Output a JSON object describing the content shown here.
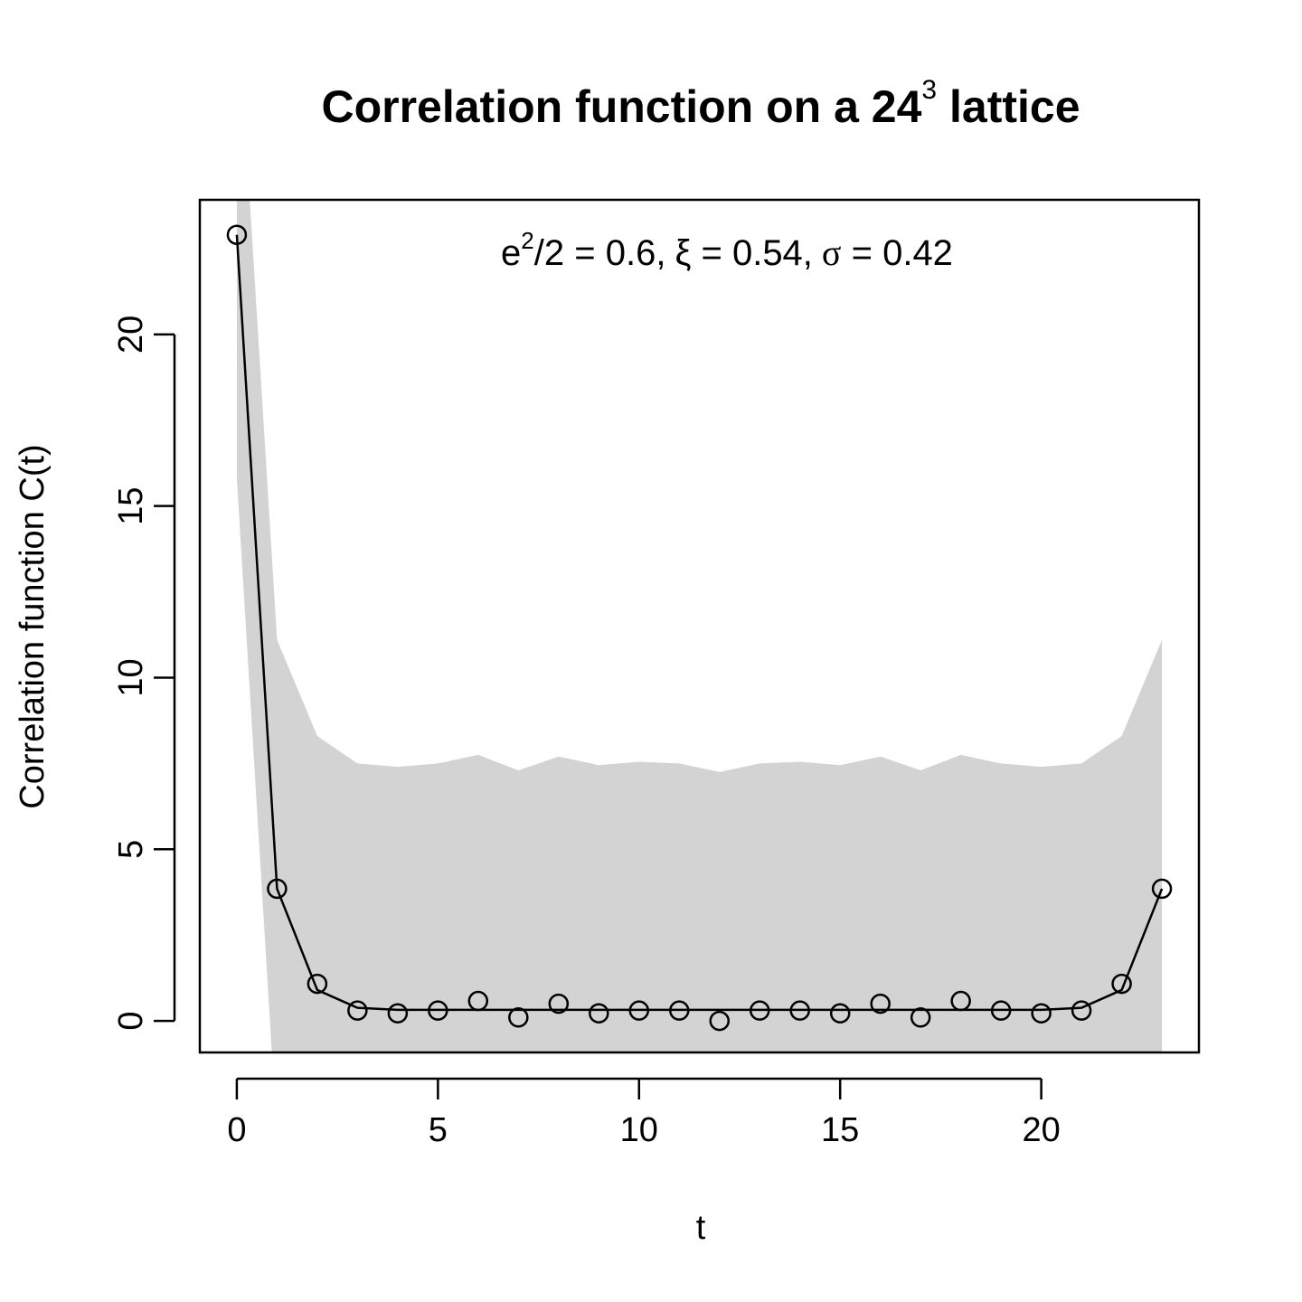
{
  "chart_data": {
    "type": "line",
    "title": {
      "text": "Correlation function on a 24",
      "superscript": "3",
      "suffix": " lattice"
    },
    "xlabel": "t",
    "ylabel": "Correlation function C(t)",
    "xlim": [
      -0.92,
      23.92
    ],
    "ylim": [
      -0.92,
      23.92
    ],
    "xticks": [
      0,
      5,
      10,
      15,
      20
    ],
    "yticks": [
      0,
      5,
      10,
      15,
      20
    ],
    "annotation": {
      "e_sym": "e",
      "e_sup": "2",
      "e_rest": "/2 = ",
      "e_val": "0.6,",
      "xi_sym": "ξ",
      "xi_eq": " = ",
      "xi_val": "0.54,",
      "sigma_sym": "σ",
      "sigma_eq": " = ",
      "sigma_val": "0.42"
    },
    "series": [
      {
        "kind": "points",
        "marker": "open-circle",
        "x": [
          0,
          1,
          2,
          3,
          4,
          5,
          6,
          7,
          8,
          9,
          10,
          11,
          12,
          13,
          14,
          15,
          16,
          17,
          18,
          19,
          20,
          21,
          22,
          23
        ],
        "y": [
          22.9,
          3.85,
          1.08,
          0.3,
          0.22,
          0.3,
          0.58,
          0.1,
          0.5,
          0.22,
          0.3,
          0.3,
          0.0,
          0.3,
          0.3,
          0.22,
          0.5,
          0.1,
          0.58,
          0.3,
          0.22,
          0.3,
          1.08,
          3.85
        ]
      },
      {
        "kind": "line",
        "x": [
          0,
          1,
          2,
          3,
          4,
          5,
          6,
          7,
          8,
          9,
          10,
          11,
          12,
          13,
          14,
          15,
          16,
          17,
          18,
          19,
          20,
          21,
          22,
          23
        ],
        "y": [
          22.9,
          3.85,
          0.9,
          0.38,
          0.32,
          0.32,
          0.32,
          0.32,
          0.32,
          0.32,
          0.32,
          0.32,
          0.32,
          0.32,
          0.32,
          0.32,
          0.32,
          0.32,
          0.32,
          0.32,
          0.32,
          0.38,
          0.9,
          3.85
        ]
      },
      {
        "kind": "band",
        "fill": "#d3d3d3",
        "x": [
          0,
          1,
          2,
          3,
          4,
          5,
          6,
          7,
          8,
          9,
          10,
          11,
          12,
          13,
          14,
          15,
          16,
          17,
          18,
          19,
          20,
          21,
          22,
          23
        ],
        "upper": [
          30,
          11.1,
          8.3,
          7.5,
          7.4,
          7.5,
          7.75,
          7.3,
          7.7,
          7.45,
          7.55,
          7.5,
          7.25,
          7.5,
          7.55,
          7.45,
          7.7,
          7.3,
          7.75,
          7.5,
          7.4,
          7.5,
          8.3,
          11.1
        ],
        "lower": [
          15.8,
          -3.4,
          -3.4,
          -3.4,
          -3.4,
          -3.4,
          -3.4,
          -3.4,
          -3.4,
          -3.4,
          -3.4,
          -3.4,
          -3.4,
          -3.4,
          -3.4,
          -3.4,
          -3.4,
          -3.4,
          -3.4,
          -3.4,
          -3.4,
          -3.4,
          -3.4,
          -3.4
        ]
      }
    ]
  }
}
